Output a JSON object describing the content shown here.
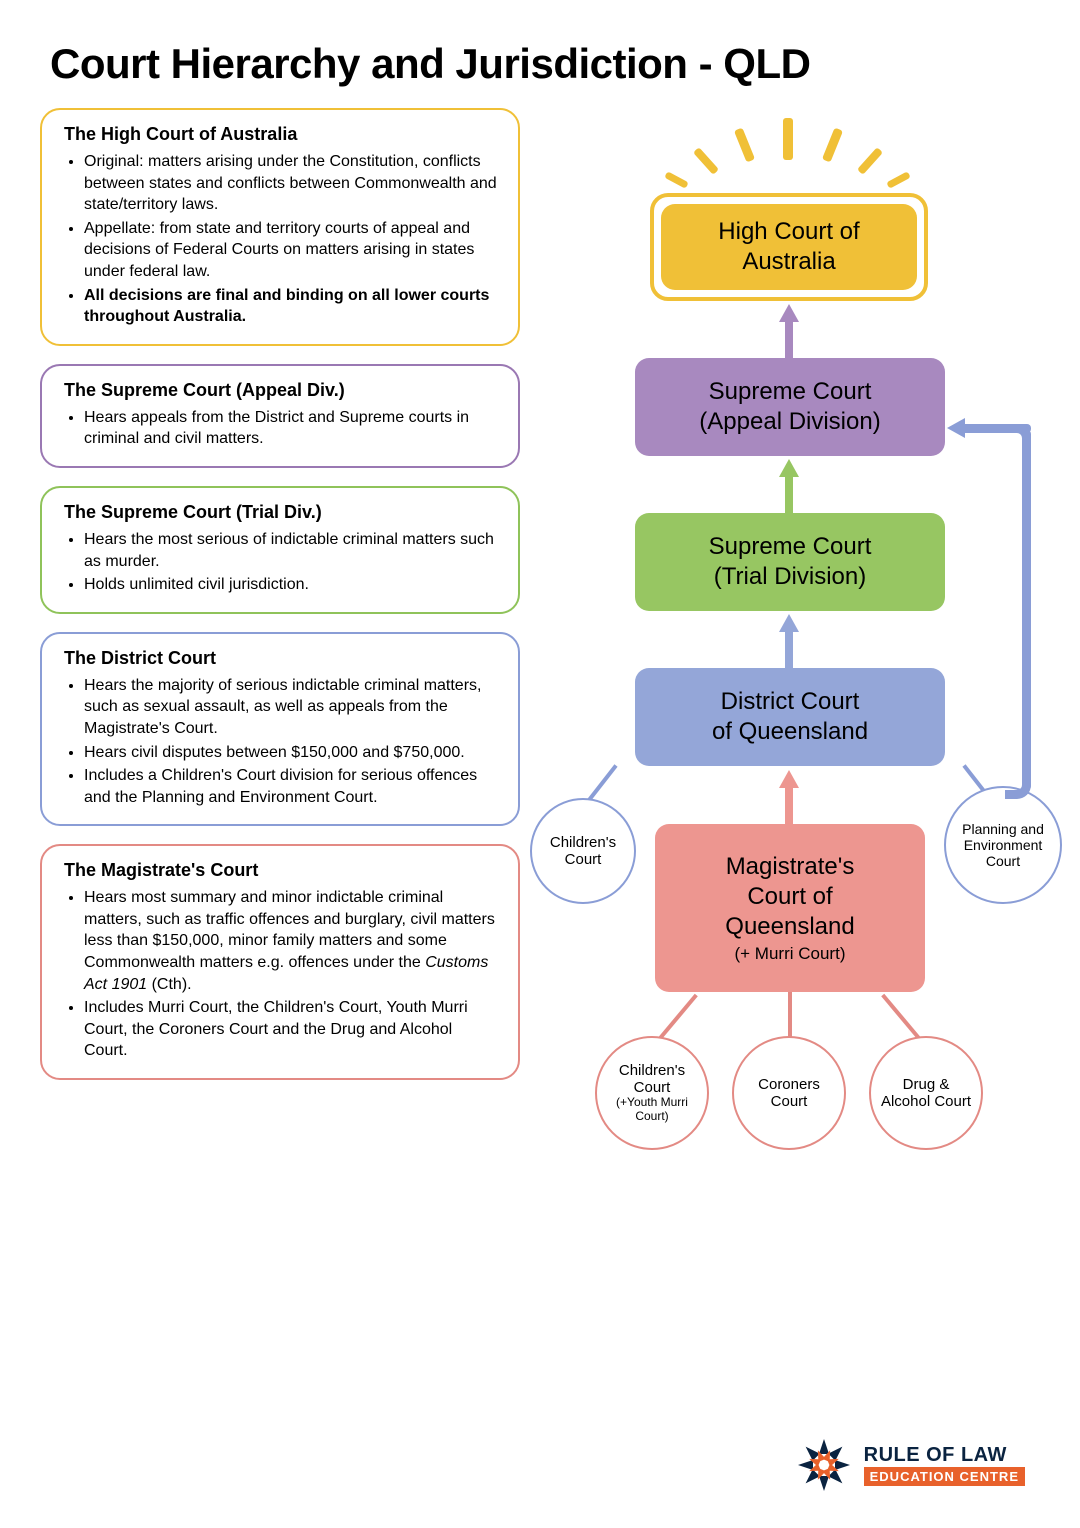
{
  "title": "Court Hierarchy and Jurisdiction - QLD",
  "cards": {
    "high": {
      "title": "The High Court of Australia",
      "border": "#f0c037",
      "items": [
        {
          "text": "Original: matters arising under the Constitution, conflicts between states and conflicts between Commonwealth and state/territory laws.",
          "bold": false
        },
        {
          "text": "Appellate: from state and territory courts of appeal and decisions of Federal Courts on matters arising in states under federal law.",
          "bold": false
        },
        {
          "text": "All decisions are final and binding on all lower courts throughout Australia.",
          "bold": true
        }
      ]
    },
    "supreme_appeal": {
      "title": "The Supreme Court (Appeal Div.)",
      "border": "#9a78b3",
      "items": [
        {
          "text": "Hears appeals from the District and Supreme courts in criminal and civil matters.",
          "bold": false
        }
      ]
    },
    "supreme_trial": {
      "title": "The Supreme Court (Trial Div.)",
      "border": "#8fc35a",
      "items": [
        {
          "text": "Hears the most serious of indictable criminal matters such as murder.",
          "bold": false
        },
        {
          "text": "Holds unlimited civil jurisdiction.",
          "bold": false
        }
      ]
    },
    "district": {
      "title": "The District Court",
      "border": "#8a9dd6",
      "items": [
        {
          "text": "Hears the majority of serious indictable criminal matters, such as sexual assault, as well as appeals from the Magistrate's Court.",
          "bold": false
        },
        {
          "text": "Hears civil disputes between $150,000 and $750,000.",
          "bold": false
        },
        {
          "text": "Includes a Children's Court division for serious offences and the Planning and Environment Court.",
          "bold": false
        }
      ]
    },
    "magistrate": {
      "title": "The Magistrate's Court",
      "border": "#e38a84",
      "items": [
        {
          "html": "Hears most summary and minor indictable criminal matters, such as traffic offences and burglary, civil matters less than $150,000, minor family matters and some Commonwealth matters e.g. offences under the <span class=\"italic\">Customs Act 1901</span> (Cth).",
          "bold": false
        },
        {
          "text": "Includes Murri Court, the Children's Court, Youth Murri Court, the Coroners Court and the Drug and Alcohol Court.",
          "bold": false
        }
      ]
    }
  },
  "nodes": {
    "high": {
      "label1": "High Court of",
      "label2": "Australia",
      "bg": "#f0c037",
      "outer_border": "#f0c037",
      "text": "#1a1a1a"
    },
    "supreme_appeal": {
      "label1": "Supreme Court",
      "label2": "(Appeal Division)",
      "bg": "#a889bf",
      "text": "#1a1a1a"
    },
    "supreme_trial": {
      "label1": "Supreme Court",
      "label2": "(Trial Division)",
      "bg": "#97c662",
      "text": "#1a1a1a"
    },
    "district": {
      "label1": "District Court",
      "label2": "of Queensland",
      "bg": "#94a6d8",
      "text": "#1a1a1a"
    },
    "magistrate": {
      "label1": "Magistrate's",
      "label2": "Court of",
      "label3": "Queensland",
      "sub": "(+ Murri Court)",
      "bg": "#ed9690",
      "text": "#1a1a1a"
    }
  },
  "circles": {
    "district_children": {
      "label": "Children's Court",
      "border": "#8a9dd6"
    },
    "district_planning": {
      "label": "Planning and Environment Court",
      "border": "#8a9dd6"
    },
    "mag_children": {
      "label": "Children's Court",
      "sub": "(+Youth Murri Court)",
      "border": "#e38a84"
    },
    "mag_coroner": {
      "label": "Coroners Court",
      "border": "#e38a84"
    },
    "mag_drug": {
      "label": "Drug & Alcohol Court",
      "border": "#e38a84"
    }
  },
  "colors": {
    "arrow_purple": "#a889bf",
    "arrow_green": "#97c662",
    "arrow_blue": "#94a6d8",
    "arrow_coral": "#ed9690",
    "ray": "#f0c037"
  },
  "logo": {
    "line1": "RULE OF LAW",
    "line2": "EDUCATION CENTRE",
    "starburst_outer": "#0a2340",
    "starburst_inner": "#e8612b"
  }
}
